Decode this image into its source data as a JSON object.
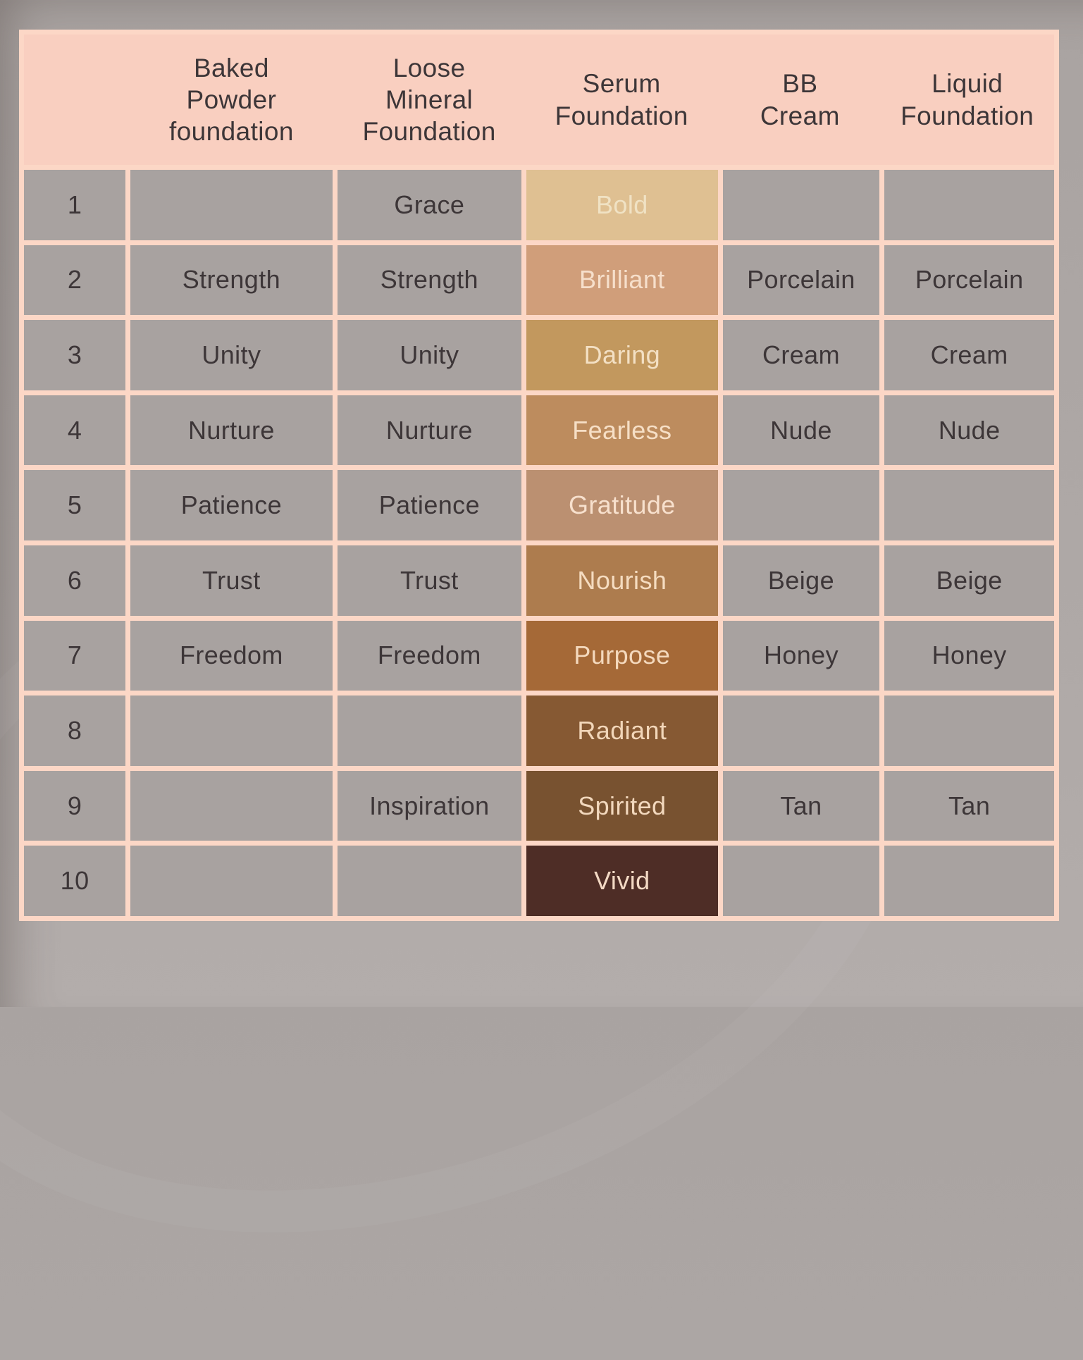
{
  "colors": {
    "page_background": "#aea8a6",
    "table_grid_line": "#fcd7c6",
    "header_background": "#f9cfc0",
    "cell_background": "#a8a2a0",
    "dark_text": "#3d3638",
    "swatch_light_text": "#f6dfca"
  },
  "chart_data": {
    "type": "table",
    "columns": [
      "",
      "Baked Powder foundation",
      "Loose Mineral Foundation",
      "Serum Foundation",
      "BB Cream",
      "Liquid Foundation"
    ],
    "column_headers_display": [
      "",
      "Baked\nPowder\nfoundation",
      "Loose\nMineral\nFoundation",
      "Serum\nFoundation",
      "BB\nCream",
      "Liquid\nFoundation"
    ],
    "rows": [
      [
        "1",
        "",
        "Grace",
        "Bold",
        "",
        ""
      ],
      [
        "2",
        "Strength",
        "Strength",
        "Brilliant",
        "Porcelain",
        "Porcelain"
      ],
      [
        "3",
        "Unity",
        "Unity",
        "Daring",
        "Cream",
        "Cream"
      ],
      [
        "4",
        "Nurture",
        "Nurture",
        "Fearless",
        "Nude",
        "Nude"
      ],
      [
        "5",
        "Patience",
        "Patience",
        "Gratitude",
        "",
        ""
      ],
      [
        "6",
        "Trust",
        "Trust",
        "Nourish",
        "Beige",
        "Beige"
      ],
      [
        "7",
        "Freedom",
        "Freedom",
        "Purpose",
        "Honey",
        "Honey"
      ],
      [
        "8",
        "",
        "",
        "Radiant",
        "",
        ""
      ],
      [
        "9",
        "",
        "Inspiration",
        "Spirited",
        "Tan",
        "Tan"
      ],
      [
        "10",
        "",
        "",
        "Vivid",
        "",
        ""
      ]
    ],
    "serum_column_index": 3,
    "serum_swatches": [
      {
        "shade": "Bold",
        "color": "#dfc092",
        "text_color": "#f0e2c4"
      },
      {
        "shade": "Brilliant",
        "color": "#d09e7a",
        "text_color": "#f6dfcb"
      },
      {
        "shade": "Daring",
        "color": "#c2985e",
        "text_color": "#f3e0c4"
      },
      {
        "shade": "Fearless",
        "color": "#bd8c5e",
        "text_color": "#f6dfc6"
      },
      {
        "shade": "Gratitude",
        "color": "#bb9071",
        "text_color": "#f7e0cd"
      },
      {
        "shade": "Nourish",
        "color": "#ad7c4e",
        "text_color": "#f5dcc0"
      },
      {
        "shade": "Purpose",
        "color": "#a56937",
        "text_color": "#f4d9bd"
      },
      {
        "shade": "Radiant",
        "color": "#865933",
        "text_color": "#f2d6b9"
      },
      {
        "shade": "Spirited",
        "color": "#785230",
        "text_color": "#f2d8bd"
      },
      {
        "shade": "Vivid",
        "color": "#4e2d26",
        "text_color": "#f3d9c4"
      }
    ],
    "column_ids": [
      "row-number",
      "baked-powder-foundation",
      "loose-mineral-foundation",
      "serum-foundation",
      "bb-cream",
      "liquid-foundation"
    ]
  }
}
